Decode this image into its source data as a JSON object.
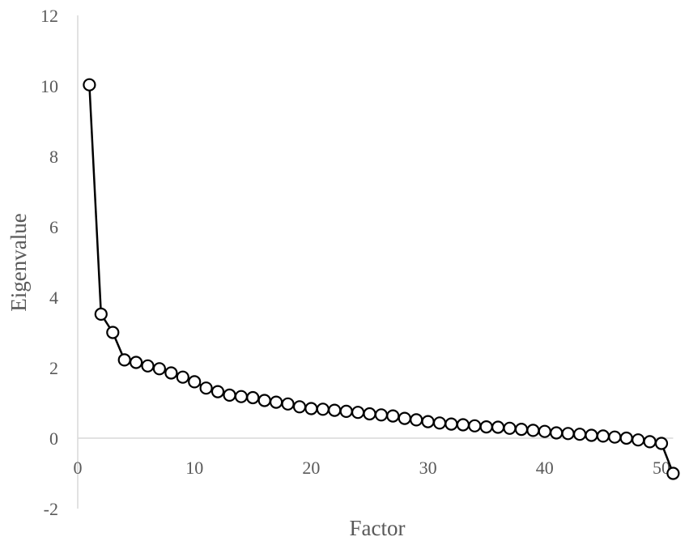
{
  "chart_data": {
    "type": "scatter",
    "xlabel": "Factor",
    "ylabel": "Eigenvalue",
    "xlim": [
      0,
      51
    ],
    "ylim": [
      -2,
      12
    ],
    "x_ticks": [
      "0",
      "10",
      "20",
      "30",
      "40",
      "50"
    ],
    "y_ticks": [
      "-2",
      "0",
      "2",
      "4",
      "6",
      "8",
      "10",
      "12"
    ],
    "grid": false,
    "colors": {
      "line": "#000000",
      "marker_fill": "#ffffff",
      "axis": "#d9d9d9",
      "text": "#595959"
    },
    "series": [
      {
        "x": [
          1,
          2,
          3,
          4,
          5,
          6,
          7,
          8,
          9,
          10,
          11,
          12,
          13,
          14,
          15,
          16,
          17,
          18,
          19,
          20,
          21,
          22,
          23,
          24,
          25,
          26,
          27,
          28,
          29,
          30,
          31,
          32,
          33,
          34,
          35,
          36,
          37,
          38,
          39,
          40,
          41,
          42,
          43,
          44,
          45,
          46,
          47,
          48,
          49,
          50,
          51
        ],
        "values": [
          10.03,
          3.52,
          3.0,
          2.22,
          2.15,
          2.05,
          1.97,
          1.85,
          1.73,
          1.6,
          1.42,
          1.32,
          1.22,
          1.18,
          1.15,
          1.07,
          1.02,
          0.97,
          0.89,
          0.84,
          0.82,
          0.79,
          0.76,
          0.73,
          0.69,
          0.66,
          0.63,
          0.56,
          0.52,
          0.47,
          0.43,
          0.4,
          0.38,
          0.35,
          0.32,
          0.31,
          0.28,
          0.25,
          0.22,
          0.19,
          0.15,
          0.13,
          0.11,
          0.08,
          0.06,
          0.03,
          0.0,
          -0.05,
          -0.1,
          -0.15,
          -1.0
        ]
      }
    ]
  }
}
